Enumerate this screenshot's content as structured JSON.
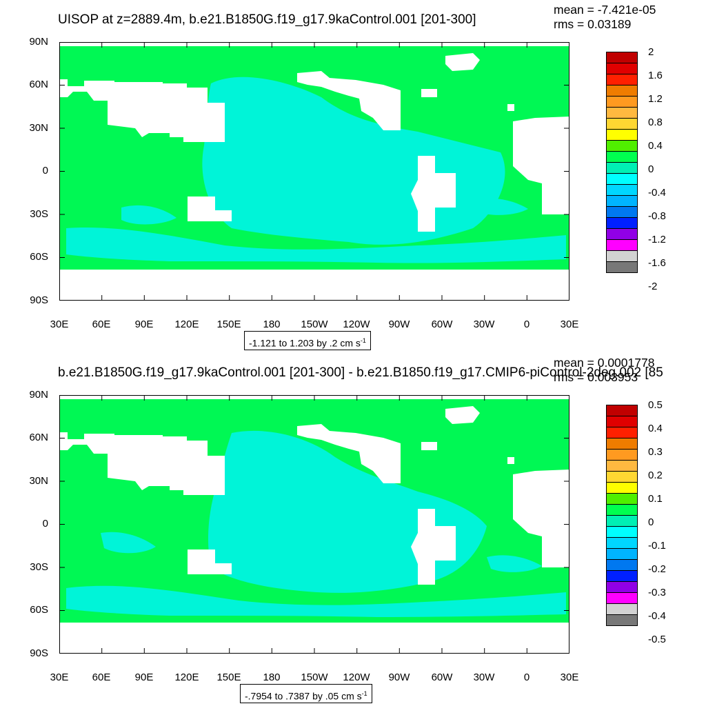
{
  "panels": [
    {
      "title": "UISOP at z=2889.4m, b.e21.B1850G.f19_g17.9kaControl.001 [201-300]",
      "stats": {
        "mean": "mean = -7.421e-05",
        "rms": "rms = 0.03189"
      },
      "units": "-1.121 to 1.203 by .2 cm s",
      "units_superscript": "-1",
      "colorbar_labels": [
        "2",
        "1.6",
        "1.2",
        "0.8",
        "0.4",
        "0",
        "-0.4",
        "-0.8",
        "-1.2",
        "-1.6",
        "-2"
      ]
    },
    {
      "title": "b.e21.B1850G.f19_g17.9kaControl.001 [201-300] - b.e21.B1850.f19_g17.CMIP6-piControl-2deg.002 [85",
      "stats": {
        "mean": "mean = 0.0001778",
        "rms": "rms = 0.003953"
      },
      "units": "-.7954 to .7387 by .05 cm s",
      "units_superscript": "-1",
      "colorbar_labels": [
        "0.5",
        "0.4",
        "0.3",
        "0.2",
        "0.1",
        "0",
        "-0.1",
        "-0.2",
        "-0.3",
        "-0.4",
        "-0.5"
      ]
    }
  ],
  "lat_labels": [
    "90N",
    "60N",
    "30N",
    "0",
    "30S",
    "60S",
    "90S"
  ],
  "lon_labels": [
    "30E",
    "60E",
    "90E",
    "120E",
    "150E",
    "180",
    "150W",
    "120W",
    "90W",
    "60W",
    "30W",
    "0",
    "30E"
  ],
  "colors": {
    "colorbar": [
      "#c00000",
      "#e00000",
      "#ff2000",
      "#ef7c00",
      "#ff9a20",
      "#ffb940",
      "#ffd732",
      "#ffff00",
      "#50ef00",
      "#00ff50",
      "#00f0b4",
      "#00ffff",
      "#00d7ff",
      "#00b4ff",
      "#0078f0",
      "#0020ff",
      "#9100e6",
      "#ff00ff",
      "#d2d2d2",
      "#787878"
    ],
    "ocean_green": "#00f854",
    "ocean_cyan": "#00f4d8",
    "land": "#ffffff"
  }
}
